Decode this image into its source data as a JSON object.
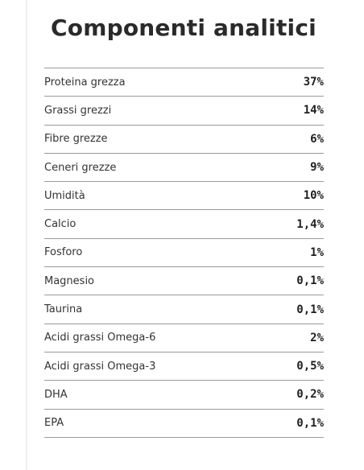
{
  "title": "Componenti analitici",
  "rows": [
    {
      "label": "Proteina grezza",
      "value": "37%"
    },
    {
      "label": "Grassi grezzi",
      "value": "14%"
    },
    {
      "label": "Fibre grezze",
      "value": "6%"
    },
    {
      "label": "Ceneri grezze",
      "value": "9%"
    },
    {
      "label": "Umidità",
      "value": "10%"
    },
    {
      "label": "Calcio",
      "value": "1,4%"
    },
    {
      "label": "Fosforo",
      "value": "1%"
    },
    {
      "label": "Magnesio",
      "value": "0,1%"
    },
    {
      "label": "Taurina",
      "value": "0,1%"
    },
    {
      "label": "Acidi grassi Omega-6",
      "value": "2%"
    },
    {
      "label": "Acidi grassi Omega-3",
      "value": "0,5%"
    },
    {
      "label": "DHA",
      "value": "0,2%"
    },
    {
      "label": "EPA",
      "value": "0,1%"
    }
  ]
}
